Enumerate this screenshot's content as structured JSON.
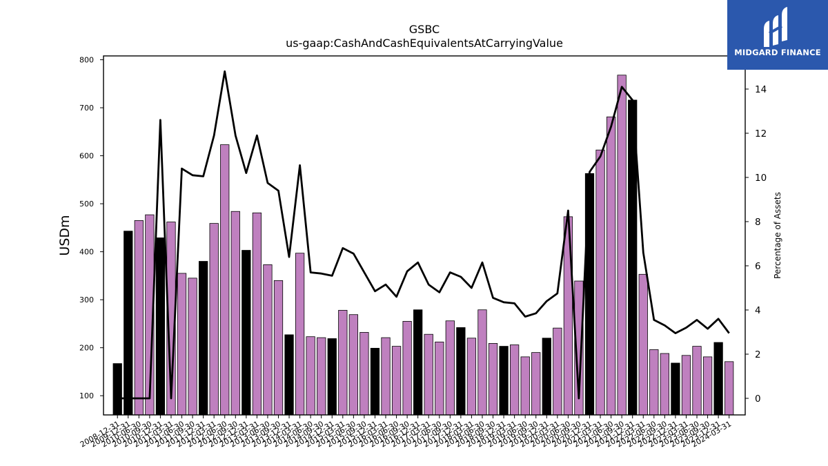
{
  "brand": {
    "name": "MIDGARD FINANCE",
    "background_color": "#2b58ad",
    "icon": "midgard-m-logo-icon"
  },
  "chart_data": {
    "type": "bar",
    "title": "GSBC",
    "subtitle": "us-gaap:CashAndCashEquivalentsAtCarryingValue",
    "ylabel": "USDm",
    "y2label": "Percentage of Assets",
    "ylim": [
      60,
      808
    ],
    "y2lim": [
      -0.75,
      15.5
    ],
    "yticks": [
      100,
      200,
      300,
      400,
      500,
      600,
      700,
      800
    ],
    "y2ticks": [
      0,
      2,
      4,
      6,
      8,
      10,
      12,
      14
    ],
    "legend": "none",
    "grid": false,
    "colors": {
      "q4_bar": "#000000",
      "other_bar": "#bf80bf",
      "line": "#000000"
    },
    "categories": [
      "2008-12-31",
      "2009-12-31",
      "2010-06-30",
      "2010-09-30",
      "2010-12-31",
      "2011-03-31",
      "2011-06-30",
      "2011-09-30",
      "2011-12-31",
      "2012-03-31",
      "2012-06-30",
      "2012-09-30",
      "2012-12-31",
      "2013-03-31",
      "2013-06-30",
      "2013-09-30",
      "2013-12-31",
      "2014-03-31",
      "2014-06-30",
      "2014-09-30",
      "2014-12-31",
      "2015-03-31",
      "2015-06-30",
      "2015-09-30",
      "2015-12-31",
      "2016-03-31",
      "2016-06-30",
      "2016-09-30",
      "2016-12-31",
      "2017-03-31",
      "2017-06-30",
      "2017-09-30",
      "2017-12-31",
      "2018-03-31",
      "2018-06-30",
      "2018-09-30",
      "2018-12-31",
      "2019-03-31",
      "2019-06-30",
      "2019-09-30",
      "2019-12-31",
      "2020-03-31",
      "2020-06-30",
      "2020-09-30",
      "2020-12-31",
      "2021-03-31",
      "2021-06-30",
      "2021-09-30",
      "2021-12-31",
      "2022-03-31",
      "2022-06-30",
      "2022-09-30",
      "2022-12-31",
      "2023-03-31",
      "2023-06-30",
      "2023-09-30",
      "2023-12-31",
      "2024-03-31"
    ],
    "series": [
      {
        "chart": "bar",
        "axis": "left",
        "values": [
          167,
          443,
          465,
          477,
          429,
          462,
          355,
          345,
          380,
          459,
          623,
          484,
          403,
          481,
          373,
          340,
          227,
          397,
          223,
          221,
          219,
          278,
          269,
          232,
          199,
          221,
          203,
          255,
          279,
          228,
          212,
          256,
          242,
          220,
          279,
          209,
          203,
          206,
          181,
          190,
          220,
          241,
          473,
          339,
          563,
          612,
          681,
          768,
          716,
          353,
          196,
          188,
          168,
          184,
          203,
          181,
          211,
          171
        ],
        "q4_flags": [
          1,
          1,
          0,
          0,
          1,
          0,
          0,
          0,
          1,
          0,
          0,
          0,
          1,
          0,
          0,
          0,
          1,
          0,
          0,
          0,
          1,
          0,
          0,
          0,
          1,
          0,
          0,
          0,
          1,
          0,
          0,
          0,
          1,
          0,
          0,
          0,
          1,
          0,
          0,
          0,
          1,
          0,
          0,
          0,
          1,
          0,
          0,
          0,
          1,
          0,
          0,
          0,
          1,
          0,
          0,
          0,
          1,
          0
        ]
      },
      {
        "chart": "line",
        "axis": "right",
        "values": [
          0.0,
          0.0,
          0.0,
          0.0,
          12.6,
          0.0,
          10.4,
          10.1,
          10.05,
          11.9,
          14.8,
          11.9,
          10.2,
          11.9,
          9.75,
          9.4,
          6.4,
          10.55,
          5.7,
          5.65,
          5.55,
          6.8,
          6.55,
          5.7,
          4.85,
          5.15,
          4.6,
          5.75,
          6.15,
          5.15,
          4.8,
          5.7,
          5.5,
          5.0,
          6.15,
          4.55,
          4.35,
          4.3,
          3.7,
          3.85,
          4.4,
          4.75,
          8.5,
          0.0,
          10.25,
          10.95,
          12.3,
          14.1,
          13.5,
          6.6,
          3.55,
          3.3,
          2.95,
          3.2,
          3.55,
          3.15,
          3.6,
          2.95
        ]
      }
    ]
  }
}
